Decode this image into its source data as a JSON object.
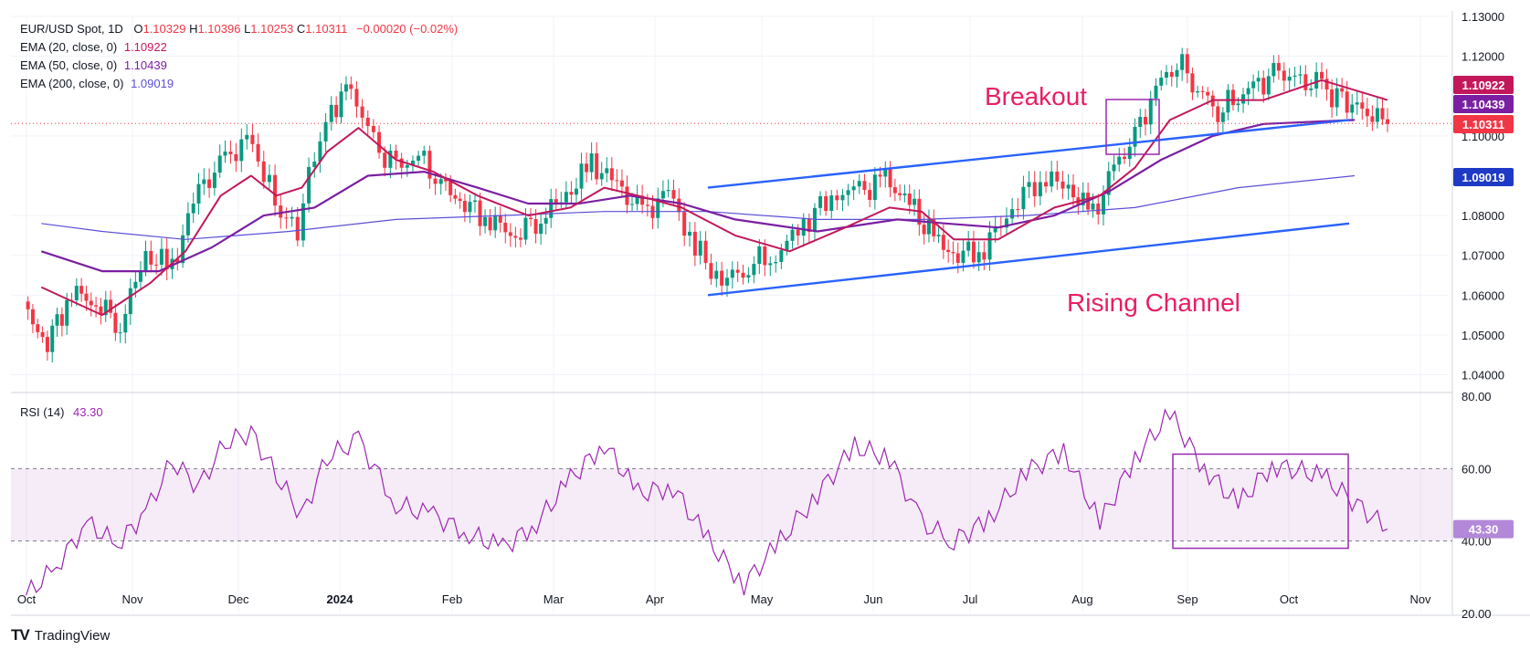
{
  "header": {
    "symbol": "EUR/USD Spot, 1D",
    "ohlc": {
      "o": "1.10329",
      "h": "1.10396",
      "l": "1.10253",
      "c": "1.10311",
      "chg": "−0.00020 (−0.02%)"
    },
    "ema20_label": "EMA (20, close, 0)",
    "ema20_value": "1.10922",
    "ema50_label": "EMA (50, close, 0)",
    "ema50_value": "1.10439",
    "ema200_label": "EMA (200, close, 0)",
    "ema200_value": "1.09019"
  },
  "rsi_header": {
    "label": "RSI (14)",
    "value": "43.30"
  },
  "annotations": {
    "breakout": "Breakout",
    "channel": "Rising Channel"
  },
  "brand": {
    "name": "TradingView",
    "mark": "TV"
  },
  "colors": {
    "up": "#089981",
    "down": "#f23645",
    "ema20": "#c2185b",
    "ema50": "#7b1fa2",
    "ema200": "#5c4ed8",
    "channel": "#2962ff",
    "rsi": "#9c27b0",
    "annotation": "#e91e63"
  },
  "chart_data": [
    {
      "type": "candlestick",
      "title": "EUR/USD Spot, 1D",
      "x_ticks": [
        "Oct",
        "Nov",
        "Dec",
        "2024",
        "Feb",
        "Mar",
        "Apr",
        "May",
        "Jun",
        "Jul",
        "Aug",
        "Sep",
        "Oct",
        "Nov"
      ],
      "y_ticks": [
        "1.13000",
        "1.12000",
        "1.10000",
        "1.08000",
        "1.07000",
        "1.06000",
        "1.05000",
        "1.04000"
      ],
      "ylim": [
        1.036,
        1.13
      ],
      "last_price": "1.10311",
      "price_labels": [
        "1.10922",
        "1.10439",
        "1.10311",
        "1.09019"
      ],
      "close_path": [
        [
          "Oct",
          1.057
        ],
        [
          "Oct",
          1.048
        ],
        [
          "Oct",
          1.061
        ],
        [
          "Oct",
          1.058
        ],
        [
          "Oct",
          1.053
        ],
        [
          "Nov",
          1.07
        ],
        [
          "Nov",
          1.067
        ],
        [
          "Nov",
          1.087
        ],
        [
          "Nov",
          1.093
        ],
        [
          "Dec",
          1.1
        ],
        [
          "Dec",
          1.09
        ],
        [
          "Dec",
          1.08
        ],
        [
          "Dec",
          1.077
        ],
        [
          "Dec",
          1.095
        ],
        [
          "Dec",
          1.107
        ],
        [
          "2024",
          1.112
        ],
        [
          "2024",
          1.098
        ],
        [
          "2024",
          1.092
        ],
        [
          "2024",
          1.095
        ],
        [
          "2024",
          1.088
        ],
        [
          "Feb",
          1.083
        ],
        [
          "Feb",
          1.079
        ],
        [
          "Feb",
          1.075
        ],
        [
          "Feb",
          1.08
        ],
        [
          "Mar",
          1.085
        ],
        [
          "Mar",
          1.093
        ],
        [
          "Mar",
          1.088
        ],
        [
          "Mar",
          1.08
        ],
        [
          "Apr",
          1.086
        ],
        [
          "Apr",
          1.072
        ],
        [
          "Apr",
          1.063
        ],
        [
          "Apr",
          1.068
        ],
        [
          "May",
          1.07
        ],
        [
          "May",
          1.078
        ],
        [
          "May",
          1.085
        ],
        [
          "May",
          1.086
        ],
        [
          "Jun",
          1.089
        ],
        [
          "Jun",
          1.083
        ],
        [
          "Jun",
          1.074
        ],
        [
          "Jun",
          1.07
        ],
        [
          "Jul",
          1.072
        ],
        [
          "Jul",
          1.082
        ],
        [
          "Jul",
          1.09
        ],
        [
          "Jul",
          1.087
        ],
        [
          "Aug",
          1.08
        ],
        [
          "Aug",
          1.092
        ],
        [
          "Aug",
          1.1
        ],
        [
          "Aug",
          1.112
        ],
        [
          "Aug",
          1.119
        ],
        [
          "Sep",
          1.112
        ],
        [
          "Sep",
          1.106
        ],
        [
          "Sep",
          1.11
        ],
        [
          "Sep",
          1.113
        ],
        [
          "Sep",
          1.116
        ],
        [
          "Oct",
          1.112
        ],
        [
          "Oct",
          1.103
        ]
      ],
      "ema20": [
        [
          "Oct",
          1.062
        ],
        [
          "Oct",
          1.055
        ],
        [
          "Nov",
          1.063
        ],
        [
          "Nov",
          1.071
        ],
        [
          "Nov",
          1.085
        ],
        [
          "Dec",
          1.09
        ],
        [
          "Dec",
          1.085
        ],
        [
          "Dec",
          1.087
        ],
        [
          "Dec",
          1.096
        ],
        [
          "2024",
          1.102
        ],
        [
          "2024",
          1.094
        ],
        [
          "2024",
          1.091
        ],
        [
          "Feb",
          1.085
        ],
        [
          "Feb",
          1.08
        ],
        [
          "Mar",
          1.082
        ],
        [
          "Mar",
          1.087
        ],
        [
          "Mar",
          1.085
        ],
        [
          "Apr",
          1.082
        ],
        [
          "Apr",
          1.075
        ],
        [
          "May",
          1.071
        ],
        [
          "May",
          1.077
        ],
        [
          "Jun",
          1.082
        ],
        [
          "Jun",
          1.081
        ],
        [
          "Jun",
          1.074
        ],
        [
          "Jul",
          1.074
        ],
        [
          "Jul",
          1.082
        ],
        [
          "Aug",
          1.085
        ],
        [
          "Aug",
          1.092
        ],
        [
          "Aug",
          1.104
        ],
        [
          "Sep",
          1.109
        ],
        [
          "Sep",
          1.109
        ],
        [
          "Oct",
          1.114
        ],
        [
          "Oct",
          1.109
        ]
      ],
      "ema50": [
        [
          "Oct",
          1.071
        ],
        [
          "Oct",
          1.066
        ],
        [
          "Nov",
          1.066
        ],
        [
          "Nov",
          1.072
        ],
        [
          "Dec",
          1.08
        ],
        [
          "Dec",
          1.082
        ],
        [
          "2024",
          1.09
        ],
        [
          "2024",
          1.091
        ],
        [
          "Feb",
          1.087
        ],
        [
          "Feb",
          1.083
        ],
        [
          "Mar",
          1.083
        ],
        [
          "Mar",
          1.085
        ],
        [
          "Apr",
          1.083
        ],
        [
          "Apr",
          1.079
        ],
        [
          "May",
          1.076
        ],
        [
          "Jun",
          1.079
        ],
        [
          "Jun",
          1.078
        ],
        [
          "Jul",
          1.077
        ],
        [
          "Jul",
          1.08
        ],
        [
          "Aug",
          1.086
        ],
        [
          "Aug",
          1.094
        ],
        [
          "Sep",
          1.1
        ],
        [
          "Sep",
          1.103
        ],
        [
          "Oct",
          1.104
        ]
      ],
      "ema200": [
        [
          "Oct",
          1.078
        ],
        [
          "Oct",
          1.076
        ],
        [
          "Nov",
          1.074
        ],
        [
          "Dec",
          1.076
        ],
        [
          "2024",
          1.079
        ],
        [
          "Feb",
          1.08
        ],
        [
          "Mar",
          1.081
        ],
        [
          "Apr",
          1.081
        ],
        [
          "May",
          1.079
        ],
        [
          "Jun",
          1.079
        ],
        [
          "Jul",
          1.08
        ],
        [
          "Aug",
          1.082
        ],
        [
          "Sep",
          1.087
        ],
        [
          "Oct",
          1.09
        ]
      ],
      "rising_channel": {
        "upper": [
          [
            "Apr",
            1.087
          ],
          [
            "Oct",
            1.104
          ]
        ],
        "lower": [
          [
            "Apr",
            1.06
          ],
          [
            "Oct",
            1.078
          ]
        ]
      },
      "breakout_box": {
        "x": [
          "Aug",
          "Aug"
        ],
        "y": [
          1.093,
          1.105
        ]
      }
    },
    {
      "type": "line",
      "title": "RSI (14)",
      "series": [
        {
          "name": "RSI (14)",
          "values_last": 43.3
        }
      ],
      "y_ticks": [
        "80.00",
        "60.00",
        "40.00",
        "20.00"
      ],
      "ylim": [
        20,
        80
      ],
      "band": [
        40,
        60
      ],
      "rsi_path": [
        [
          "Oct",
          25
        ],
        [
          "Oct",
          33
        ],
        [
          "Oct",
          45
        ],
        [
          "Oct",
          39
        ],
        [
          "Nov",
          48
        ],
        [
          "Nov",
          62
        ],
        [
          "Nov",
          55
        ],
        [
          "Nov",
          67
        ],
        [
          "Dec",
          70
        ],
        [
          "Dec",
          58
        ],
        [
          "Dec",
          47
        ],
        [
          "Dec",
          63
        ],
        [
          "2024",
          68
        ],
        [
          "2024",
          50
        ],
        [
          "2024",
          47
        ],
        [
          "Feb",
          42
        ],
        [
          "Feb",
          38
        ],
        [
          "Feb",
          45
        ],
        [
          "Mar",
          57
        ],
        [
          "Mar",
          67
        ],
        [
          "Mar",
          53
        ],
        [
          "Apr",
          55
        ],
        [
          "Apr",
          40
        ],
        [
          "Apr",
          28
        ],
        [
          "May",
          40
        ],
        [
          "May",
          53
        ],
        [
          "May",
          66
        ],
        [
          "Jun",
          63
        ],
        [
          "Jun",
          45
        ],
        [
          "Jun",
          40
        ],
        [
          "Jul",
          46
        ],
        [
          "Jul",
          59
        ],
        [
          "Jul",
          65
        ],
        [
          "Aug",
          45
        ],
        [
          "Aug",
          63
        ],
        [
          "Aug",
          75
        ],
        [
          "Sep",
          60
        ],
        [
          "Sep",
          50
        ],
        [
          "Sep",
          61
        ],
        [
          "Oct",
          58
        ],
        [
          "Oct",
          43.3
        ]
      ],
      "highlight_box": {
        "x": [
          "Sep",
          "Oct"
        ],
        "y": [
          38,
          64
        ]
      }
    }
  ]
}
